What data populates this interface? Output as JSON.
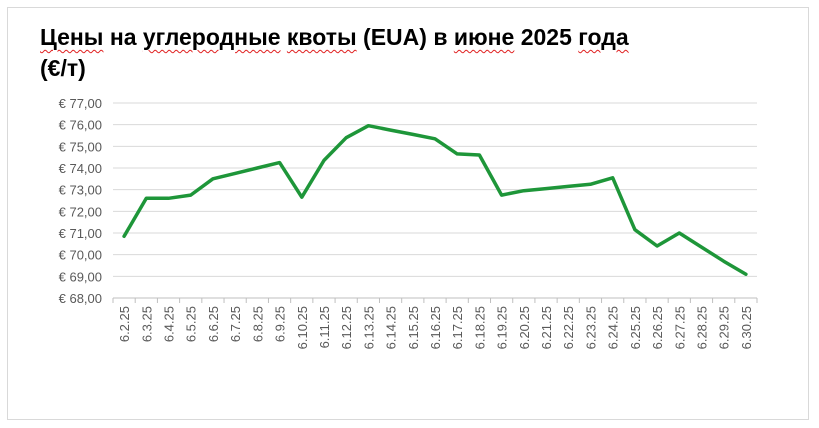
{
  "chart_data": {
    "type": "line",
    "title_words": [
      {
        "text": "Цены",
        "spell": true
      },
      {
        "text": "на",
        "spell": false
      },
      {
        "text": "углеродные",
        "spell": true
      },
      {
        "text": "квоты",
        "spell": true
      },
      {
        "text": "(EUA)",
        "spell": false
      },
      {
        "text": "в",
        "spell": false
      },
      {
        "text": "июне",
        "spell": true
      },
      {
        "text": "2025",
        "spell": false
      },
      {
        "text": "года",
        "spell": true
      },
      {
        "text": "(€/т)",
        "spell": false
      }
    ],
    "xlabel": "",
    "ylabel": "",
    "ylim": [
      68,
      77
    ],
    "yticks": [
      "€ 68,00",
      "€ 69,00",
      "€ 70,00",
      "€ 71,00",
      "€ 72,00",
      "€ 73,00",
      "€ 74,00",
      "€ 75,00",
      "€ 76,00",
      "€ 77,00"
    ],
    "categories": [
      "6.2.25",
      "6.3.25",
      "6.4.25",
      "6.5.25",
      "6.6.25",
      "6.7.25",
      "6.8.25",
      "6.9.25",
      "6.10.25",
      "6.11.25",
      "6.12.25",
      "6.13.25",
      "6.14.25",
      "6.15.25",
      "6.16.25",
      "6.17.25",
      "6.18.25",
      "6.19.25",
      "6.20.25",
      "6.21.25",
      "6.22.25",
      "6.23.25",
      "6.24.25",
      "6.25.25",
      "6.26.25",
      "6.27.25",
      "6.28.25",
      "6.29.25",
      "6.30.25"
    ],
    "series": [
      {
        "values": [
          70.85,
          72.6,
          72.6,
          72.75,
          73.5,
          73.75,
          74.0,
          74.25,
          72.65,
          74.35,
          75.4,
          75.95,
          75.75,
          75.55,
          75.35,
          74.65,
          74.6,
          72.75,
          72.95,
          73.05,
          73.15,
          73.25,
          73.55,
          71.15,
          70.4,
          71.0,
          70.35,
          69.7,
          69.1
        ]
      }
    ],
    "line_color": "#1e9639",
    "grid": true,
    "legend": "none"
  }
}
